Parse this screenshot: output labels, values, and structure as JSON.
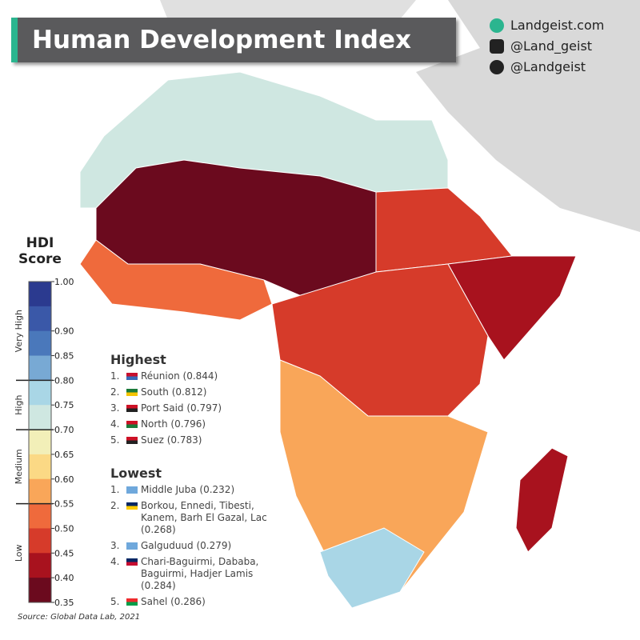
{
  "header": {
    "title": "Human Development Index"
  },
  "social": [
    "Landgeist.com",
    "@Land_geist",
    "@Landgeist"
  ],
  "legend": {
    "title": "HDI Score",
    "ticks": [
      {
        "value": 1.0,
        "label": "1.00"
      },
      {
        "value": 0.9,
        "label": "0.90"
      },
      {
        "value": 0.85,
        "label": "0.85"
      },
      {
        "value": 0.8,
        "label": "0.80"
      },
      {
        "value": 0.75,
        "label": "0.75"
      },
      {
        "value": 0.7,
        "label": "0.70"
      },
      {
        "value": 0.65,
        "label": "0.65"
      },
      {
        "value": 0.6,
        "label": "0.60"
      },
      {
        "value": 0.55,
        "label": "0.55"
      },
      {
        "value": 0.5,
        "label": "0.50"
      },
      {
        "value": 0.45,
        "label": "0.45"
      },
      {
        "value": 0.4,
        "label": "0.40"
      },
      {
        "value": 0.35,
        "label": "0.35"
      }
    ],
    "colors": [
      "#2b3a8f",
      "#3a58a8",
      "#4a78bb",
      "#78a9d4",
      "#a9d6e6",
      "#cfe7e1",
      "#f2efb8",
      "#fbd985",
      "#f9a659",
      "#ef6a3c",
      "#d63b2a",
      "#a8121e",
      "#6b0a1e"
    ],
    "classes": [
      {
        "label": "Very High",
        "range": [
          0.8,
          1.0
        ]
      },
      {
        "label": "High",
        "range": [
          0.7,
          0.8
        ]
      },
      {
        "label": "Medium",
        "range": [
          0.55,
          0.7
        ]
      },
      {
        "label": "Low",
        "range": [
          0.35,
          0.55
        ]
      }
    ]
  },
  "highest": {
    "title": "Highest",
    "items": [
      {
        "rank": "1.",
        "name": "Réunion",
        "score": "(0.844)"
      },
      {
        "rank": "2.",
        "name": "South",
        "score": "(0.812)"
      },
      {
        "rank": "3.",
        "name": "Port Said",
        "score": "(0.797)"
      },
      {
        "rank": "4.",
        "name": "North",
        "score": "(0.796)"
      },
      {
        "rank": "5.",
        "name": "Suez",
        "score": "(0.783)"
      }
    ]
  },
  "lowest": {
    "title": "Lowest",
    "items": [
      {
        "rank": "1.",
        "name": "Middle Juba",
        "score": "(0.232)"
      },
      {
        "rank": "2.",
        "name": "Borkou, Ennedi, Tibesti, Kanem, Barh El Gazal, Lac",
        "score": "(0.268)"
      },
      {
        "rank": "3.",
        "name": "Galguduud",
        "score": "(0.279)"
      },
      {
        "rank": "4.",
        "name": "Chari-Baguirmi, Dababa, Baguirmi, Hadjer Lamis",
        "score": "(0.284)"
      },
      {
        "rank": "5.",
        "name": "Sahel",
        "score": "(0.286)"
      }
    ]
  },
  "source": "Source: Global Data Lab, 2021"
}
